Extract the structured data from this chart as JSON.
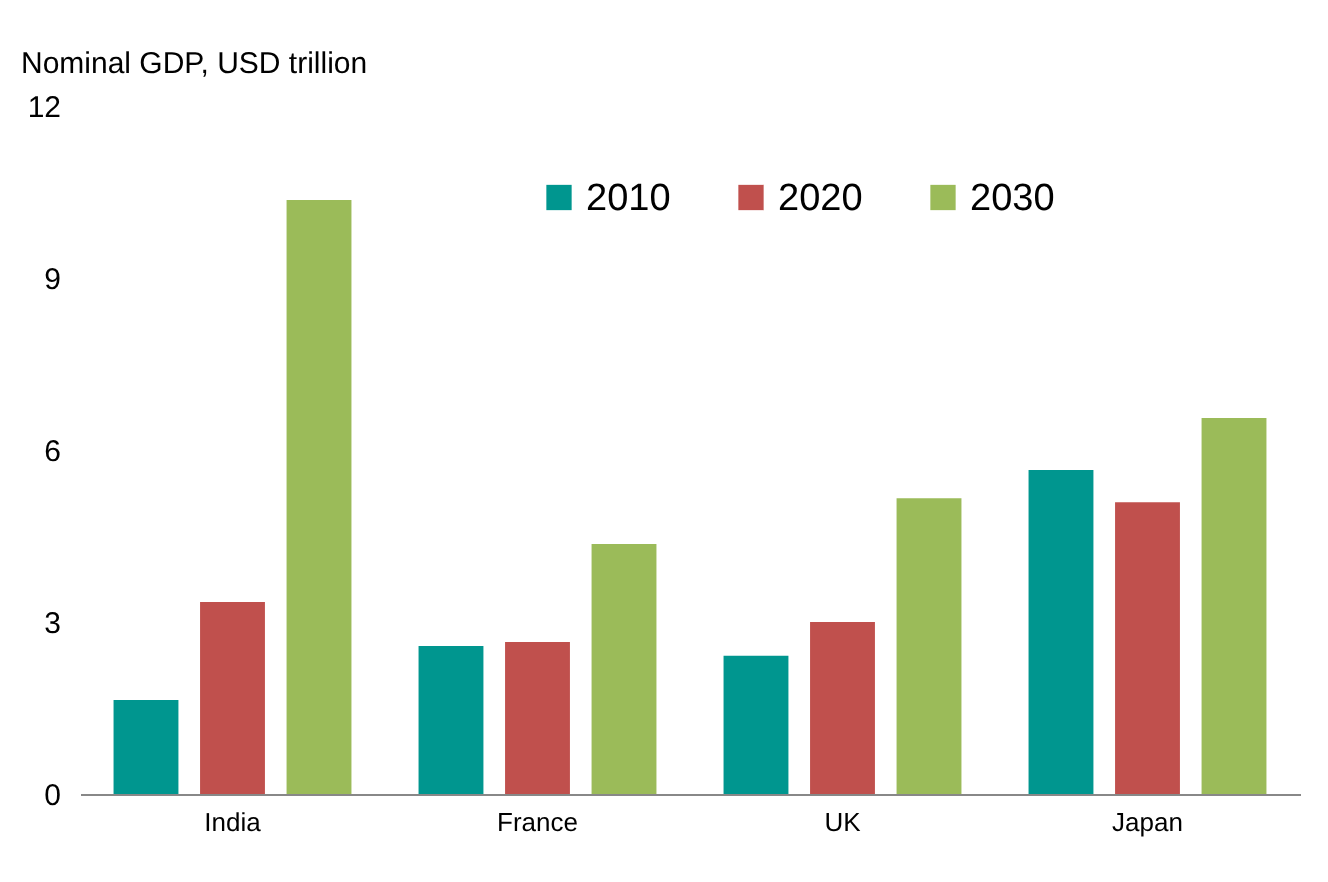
{
  "chart_data": {
    "type": "bar",
    "ylabel": "Nominal GDP, USD trillion",
    "categories": [
      "India",
      "France",
      "UK",
      "Japan"
    ],
    "series": [
      {
        "name": "2010",
        "color": "#00968f",
        "values": [
          1.64,
          2.58,
          2.41,
          5.65
        ]
      },
      {
        "name": "2020",
        "color": "#c0504d",
        "values": [
          3.35,
          2.65,
          3.0,
          5.09
        ]
      },
      {
        "name": "2030",
        "color": "#9bbb59",
        "values": [
          10.36,
          4.36,
          5.16,
          6.56
        ]
      }
    ],
    "ylim": [
      0,
      12
    ],
    "yticks": [
      0,
      3,
      6,
      9,
      12
    ],
    "grid": false,
    "legend": "top"
  }
}
